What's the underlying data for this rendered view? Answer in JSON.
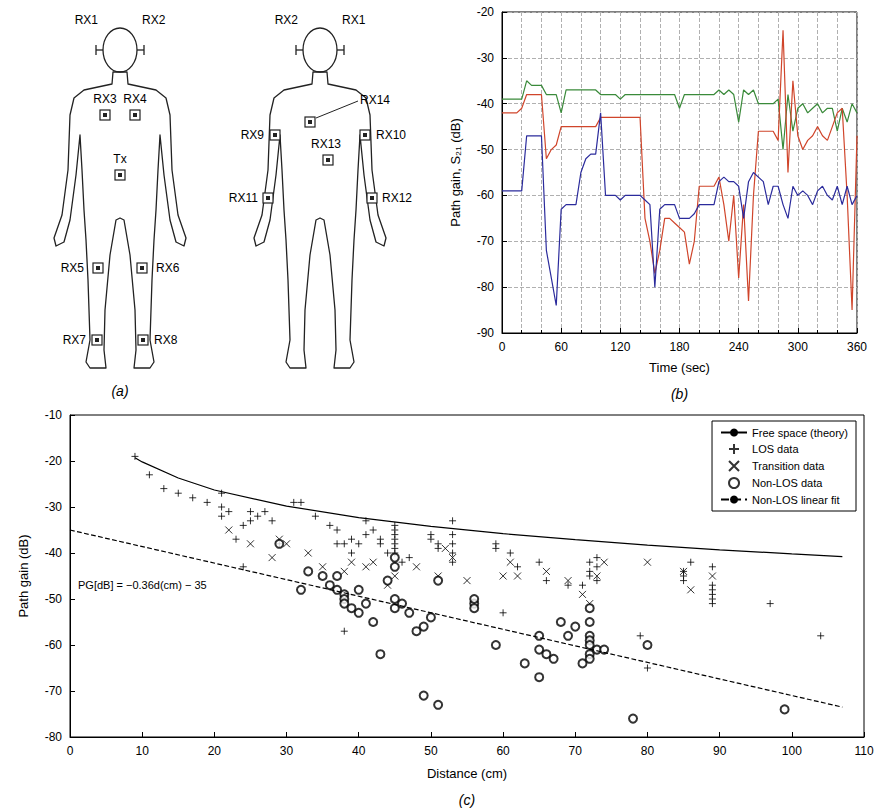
{
  "diagram": {
    "panel": "(a)",
    "front": [
      "RX1",
      "RX2",
      "RX3",
      "RX4",
      "Tx",
      "RX5",
      "RX6",
      "RX7",
      "RX8"
    ],
    "back": [
      "RX2",
      "RX1",
      "RX14",
      "RX9",
      "RX10",
      "RX13",
      "RX11",
      "RX12"
    ]
  },
  "chart_data": [
    {
      "type": "line",
      "panel": "(b)",
      "xlabel": "Time (sec)",
      "ylabel": "Path gain, S₂₁ (dB)",
      "xlim": [
        0,
        360
      ],
      "xticks": [
        0,
        60,
        120,
        180,
        240,
        300,
        360
      ],
      "ylim": [
        -90,
        -20
      ],
      "yticks": [
        -90,
        -80,
        -70,
        -60,
        -50,
        -40,
        -30,
        -20
      ],
      "grid": true,
      "x": [
        0,
        5,
        10,
        15,
        20,
        25,
        30,
        35,
        40,
        45,
        50,
        55,
        60,
        65,
        70,
        75,
        80,
        85,
        90,
        95,
        100,
        105,
        110,
        115,
        120,
        125,
        130,
        135,
        140,
        145,
        150,
        155,
        160,
        165,
        170,
        175,
        180,
        185,
        190,
        195,
        200,
        205,
        210,
        215,
        220,
        225,
        230,
        235,
        240,
        245,
        250,
        255,
        260,
        265,
        270,
        275,
        280,
        285,
        290,
        295,
        300,
        305,
        310,
        315,
        320,
        325,
        330,
        335,
        340,
        345,
        350,
        355,
        360
      ],
      "series": [
        {
          "color": "#3a8a3a",
          "values": [
            -39,
            -39,
            -39,
            -39,
            -39,
            -35,
            -36,
            -36,
            -36,
            -38,
            -38,
            -38,
            -42,
            -37,
            -37,
            -37,
            -37,
            -37,
            -37,
            -37,
            -38,
            -38,
            -38,
            -38,
            -39,
            -38,
            -38,
            -38,
            -38,
            -38,
            -38,
            -38,
            -38,
            -38,
            -38,
            -38,
            -41,
            -38,
            -38,
            -38,
            -38,
            -38,
            -38,
            -38,
            -37,
            -38,
            -37,
            -38,
            -44,
            -37,
            -38,
            -37,
            -40,
            -40,
            -40,
            -40,
            -39,
            -50,
            -38,
            -46,
            -41,
            -40,
            -42,
            -41,
            -40,
            -42,
            -41,
            -41,
            -46,
            -41,
            -44,
            -40,
            -42
          ]
        },
        {
          "color": "#d0452b",
          "values": [
            -42,
            -42,
            -42,
            -42,
            -41,
            -38,
            -38,
            -38,
            -38,
            -52,
            -50,
            -49,
            -45,
            -45,
            -45,
            -45,
            -45,
            -45,
            -45,
            -45,
            -43,
            -43,
            -43,
            -43,
            -43,
            -43,
            -43,
            -43,
            -43,
            -65,
            -70,
            -77,
            -72,
            -65,
            -65,
            -66,
            -67,
            -68,
            -75,
            -70,
            -58,
            -58,
            -58,
            -58,
            -56,
            -62,
            -70,
            -60,
            -78,
            -62,
            -83,
            -60,
            -46,
            -46,
            -46,
            -46,
            -48,
            -24,
            -55,
            -35,
            -47,
            -50,
            -48,
            -47,
            -45,
            -47,
            -48,
            -45,
            -42,
            -41,
            -60,
            -85,
            -47
          ]
        },
        {
          "color": "#2b2b9c",
          "values": [
            -59,
            -59,
            -59,
            -59,
            -59,
            -47,
            -47,
            -47,
            -47,
            -72,
            -78,
            -84,
            -63,
            -62,
            -62,
            -62,
            -55,
            -52,
            -51,
            -51,
            -42,
            -60,
            -60,
            -60,
            -61,
            -60,
            -60,
            -60,
            -60,
            -61,
            -62,
            -80,
            -63,
            -62,
            -62,
            -62,
            -65,
            -65,
            -65,
            -64,
            -62,
            -62,
            -62,
            -62,
            -57,
            -56,
            -57,
            -57,
            -58,
            -65,
            -57,
            -55,
            -56,
            -57,
            -62,
            -58,
            -58,
            -62,
            -65,
            -58,
            -60,
            -59,
            -60,
            -62,
            -59,
            -58,
            -60,
            -61,
            -58,
            -62,
            -58,
            -62,
            -60
          ]
        }
      ]
    },
    {
      "type": "scatter",
      "panel": "(c)",
      "xlabel": "Distance (cm)",
      "ylabel": "Path gain (dB)",
      "xlim": [
        0,
        110
      ],
      "xticks": [
        0,
        10,
        20,
        30,
        40,
        50,
        60,
        70,
        80,
        90,
        100,
        110
      ],
      "ylim": [
        -80,
        -10
      ],
      "yticks": [
        -80,
        -70,
        -60,
        -50,
        -40,
        -30,
        -20,
        -10
      ],
      "grid": false,
      "legend": "upper right",
      "annotations": [
        "PG[dB] = −0.36d(cm) − 35"
      ],
      "series": [
        {
          "name": "Free space (theory)",
          "type": "line",
          "line_style": "solid",
          "color": "#000000",
          "x": [
            9,
            10,
            15,
            20,
            30,
            40,
            50,
            60,
            70,
            80,
            90,
            100,
            107
          ],
          "values": [
            -19.3,
            -20.2,
            -23.7,
            -26.3,
            -29.8,
            -32.3,
            -34.2,
            -35.8,
            -37.1,
            -38.3,
            -39.3,
            -40.2,
            -40.8
          ]
        },
        {
          "name": "LOS data",
          "type": "scatter",
          "marker": "plus",
          "color": "#000000",
          "x": [
            9,
            11,
            13,
            15,
            17,
            19,
            21,
            21,
            21,
            22,
            23,
            24,
            25,
            25,
            26,
            27,
            28,
            29,
            31,
            32,
            34,
            36,
            37,
            37,
            38,
            39,
            39,
            40,
            41,
            41,
            42,
            43,
            43,
            44,
            45,
            45,
            45,
            45,
            45,
            45,
            45,
            46,
            47,
            50,
            50,
            51,
            51,
            53,
            53,
            53,
            53,
            53,
            59,
            59,
            60,
            61,
            62,
            65,
            66,
            69,
            71,
            72,
            72,
            72,
            73,
            73,
            73,
            79,
            85,
            85,
            85,
            86,
            89,
            89,
            89,
            89,
            89,
            89,
            97,
            104,
            38,
            80,
            24
          ],
          "values": [
            -19,
            -23,
            -26,
            -27,
            -28,
            -29,
            -27,
            -30,
            -32,
            -31,
            -37,
            -34,
            -31,
            -33,
            -32,
            -31,
            -33,
            -38,
            -29,
            -29,
            -32,
            -34,
            -35,
            -38,
            -38,
            -37,
            -40,
            -38,
            -33,
            -36,
            -35,
            -37,
            -38,
            -40,
            -34,
            -35,
            -36,
            -37,
            -38,
            -39,
            -40,
            -42,
            -41,
            -36,
            -37,
            -39,
            -38,
            -33,
            -36,
            -38,
            -40,
            -42,
            -38,
            -39,
            -53,
            -40,
            -43,
            -42,
            -46,
            -47,
            -47,
            -42,
            -44,
            -45,
            -41,
            -43,
            -46,
            -58,
            -44,
            -45,
            -46,
            -42,
            -43,
            -47,
            -48,
            -49,
            -50,
            -51,
            -51,
            -58,
            -57,
            -65,
            -43
          ]
        },
        {
          "name": "Transition data",
          "type": "scatter",
          "marker": "cross",
          "color": "#000000",
          "x": [
            22,
            25,
            28,
            29,
            30,
            33,
            35,
            38,
            39,
            41,
            42,
            44,
            45,
            48,
            51,
            52,
            53,
            55,
            60,
            61,
            62,
            66,
            69,
            71,
            72,
            73,
            74,
            80,
            85,
            86,
            89
          ],
          "values": [
            -35,
            -38,
            -41,
            -37,
            -38,
            -40,
            -43,
            -44,
            -42,
            -43,
            -42,
            -47,
            -45,
            -43,
            -45,
            -39,
            -41,
            -46,
            -45,
            -42,
            -45,
            -44,
            -46,
            -49,
            -51,
            -45,
            -42,
            -42,
            -44,
            -48,
            -45
          ]
        },
        {
          "name": "Non-LOS data",
          "type": "scatter",
          "marker": "circle",
          "color": "#000000",
          "x": [
            29,
            32,
            33,
            35,
            36,
            37,
            37,
            38,
            38,
            38,
            39,
            40,
            40,
            41,
            42,
            43,
            44,
            45,
            45,
            45,
            45,
            46,
            47,
            48,
            49,
            49,
            50,
            51,
            51,
            56,
            56,
            56,
            59,
            63,
            65,
            65,
            65,
            66,
            67,
            68,
            71,
            72,
            72,
            72,
            72,
            72,
            72,
            72,
            73,
            74,
            78,
            80,
            99,
            69,
            70
          ],
          "values": [
            -38,
            -48,
            -44,
            -45,
            -47,
            -45,
            -48,
            -49,
            -50,
            -51,
            -52,
            -53,
            -48,
            -51,
            -55,
            -62,
            -46,
            -41,
            -43,
            -50,
            -52,
            -51,
            -53,
            -57,
            -56,
            -71,
            -54,
            -46,
            -73,
            -51,
            -52,
            -50,
            -60,
            -64,
            -58,
            -61,
            -67,
            -62,
            -63,
            -55,
            -64,
            -52,
            -55,
            -58,
            -59,
            -60,
            -62,
            -63,
            -61,
            -61,
            -76,
            -60,
            -74,
            -58,
            -56
          ]
        },
        {
          "name": "Non-LOS linear fit",
          "type": "line",
          "line_style": "dashed",
          "color": "#000000",
          "x": [
            0,
            107
          ],
          "values": [
            -35,
            -73.5
          ]
        }
      ]
    }
  ]
}
